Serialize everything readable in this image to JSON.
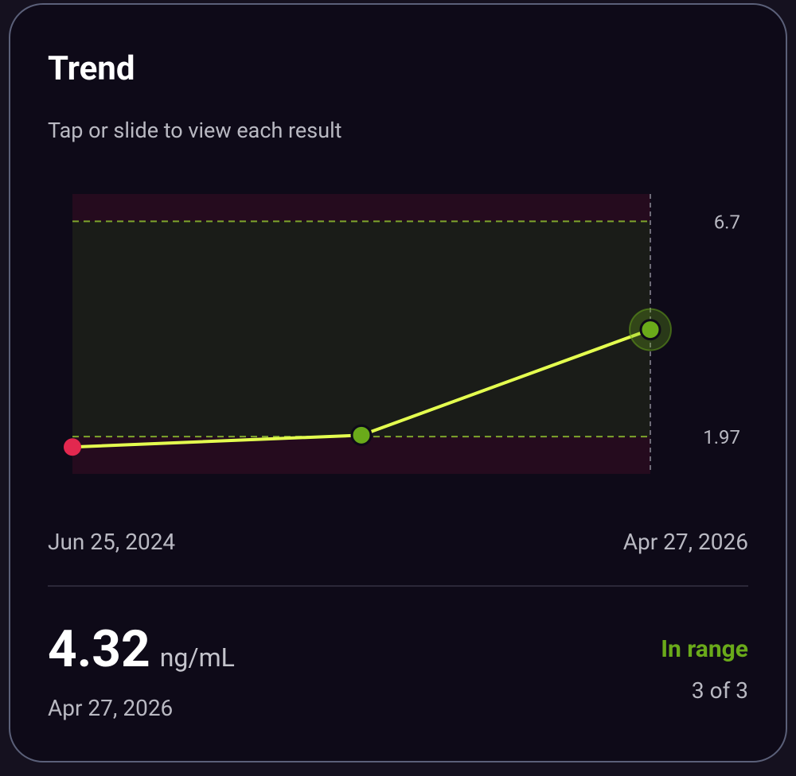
{
  "header": {
    "title": "Trend",
    "subtitle": "Tap or slide to view each result"
  },
  "chart_data": {
    "type": "line",
    "categories": [
      "Jun 25, 2024",
      null,
      "Apr 27, 2026"
    ],
    "values": [
      1.74,
      2.0,
      4.32
    ],
    "ylim": [
      1.15,
      7.3
    ],
    "reference_lines": [
      6.7,
      1.97
    ],
    "line_color": "#e4ff4f",
    "in_range_color": "#6aaa1a",
    "out_of_range_color": "#e3284f"
  },
  "reading": {
    "value": "4.32",
    "unit": "ng/mL",
    "date": "Apr 27, 2026",
    "status": "In range",
    "position": "3 of 3"
  }
}
